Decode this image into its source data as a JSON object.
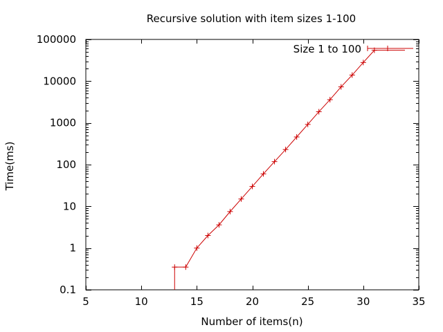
{
  "chart_data": {
    "type": "line",
    "title": "Recursive solution with item sizes 1-100",
    "xlabel": "Number of items(n)",
    "ylabel": "Time(ms)",
    "xlim": [
      5,
      35
    ],
    "ylim": [
      0.1,
      100000
    ],
    "y_scale": "log",
    "grid": false,
    "legend_position": "top-right",
    "x_ticks": [
      "5",
      "10",
      "15",
      "20",
      "25",
      "30",
      "35"
    ],
    "y_ticks": [
      "0.1",
      "1",
      "10",
      "100",
      "1000",
      "10000",
      "100000"
    ],
    "series": [
      {
        "name": "Size 1 to 100",
        "color": "#cc0000",
        "marker": "plus",
        "style": "steps-then-lines",
        "x": [
          13,
          14,
          15,
          16,
          17,
          18,
          19,
          20,
          21,
          22,
          23,
          24,
          25,
          26,
          27,
          28,
          29,
          30,
          31
        ],
        "y": [
          0.35,
          0.35,
          1,
          2,
          3.6,
          7.5,
          15,
          30,
          60,
          118,
          230,
          460,
          920,
          1850,
          3600,
          7300,
          14000,
          28000,
          55000
        ]
      }
    ]
  }
}
